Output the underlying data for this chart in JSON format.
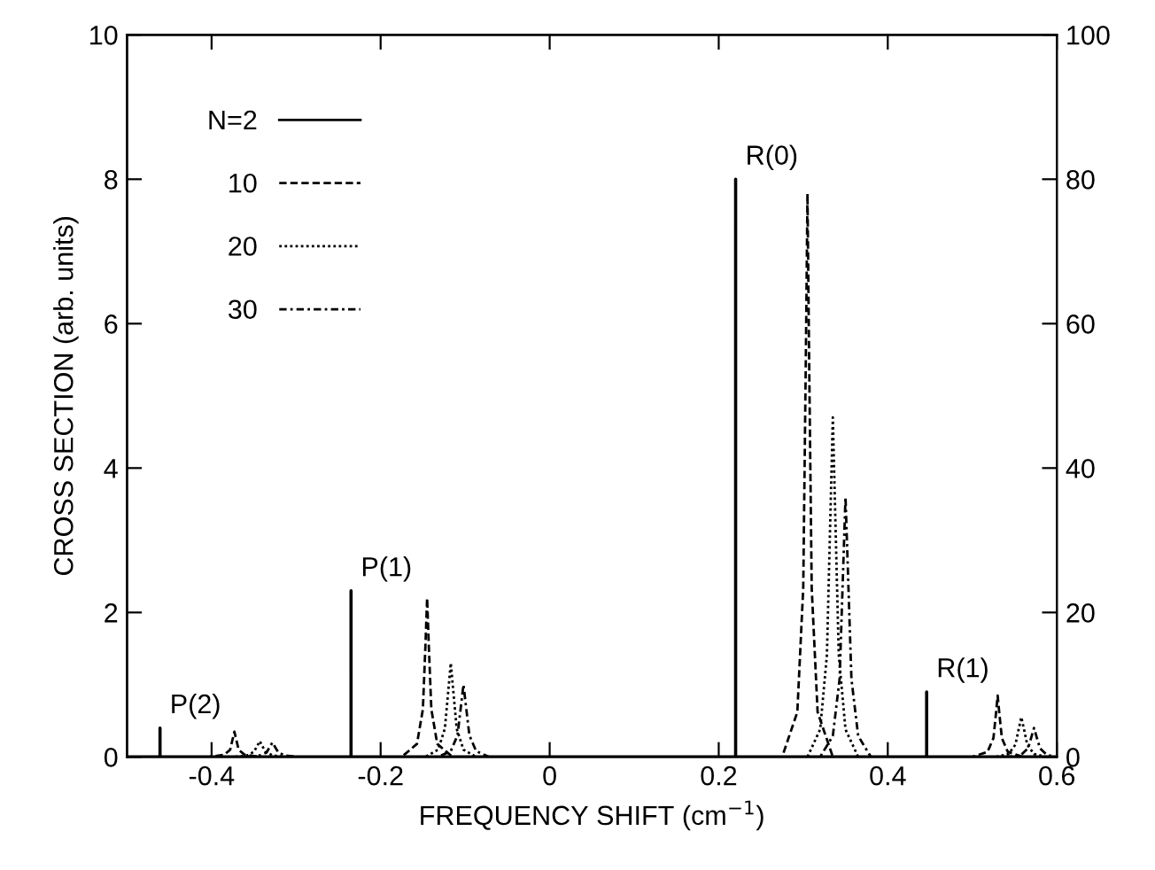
{
  "chart_data": {
    "type": "line",
    "xlabel": "FREQUENCY SHIFT (cm$^{−1}$)",
    "ylabel": "CROSS SECTION (arb. units)",
    "xlim": [
      -0.5,
      0.6
    ],
    "xticks": [
      -0.4,
      -0.2,
      0,
      0.2,
      0.4,
      0.6
    ],
    "ylim": [
      0,
      10
    ],
    "yticks": [
      0,
      2,
      4,
      6,
      8,
      10
    ],
    "y2lim": [
      0,
      100
    ],
    "y2ticks": [
      0,
      20,
      40,
      60,
      80,
      100
    ],
    "legend": "top left",
    "grid": false,
    "series": [
      {
        "name": "N=2",
        "color": "#000000",
        "line_style": "solid",
        "x": [
          -0.5,
          -0.461,
          -0.461,
          -0.461,
          -0.235,
          -0.235,
          -0.235,
          0.22,
          0.22,
          0.22,
          0.446,
          0.446,
          0.446,
          0.6
        ],
        "values": [
          0,
          0,
          0.4,
          0,
          0,
          2.3,
          0,
          0,
          8.0,
          0,
          0,
          0.9,
          0,
          0
        ]
      },
      {
        "name": "10",
        "color": "#000000",
        "line_style": "dashed",
        "x": [
          -0.5,
          -0.403,
          -0.385,
          -0.378,
          -0.375,
          -0.373,
          -0.371,
          -0.368,
          -0.361,
          -0.343,
          -0.175,
          -0.157,
          -0.15,
          -0.147,
          -0.145,
          -0.143,
          -0.14,
          -0.133,
          -0.115,
          0.275,
          0.293,
          0.3,
          0.303,
          0.305,
          0.307,
          0.31,
          0.317,
          0.335,
          0.5,
          0.518,
          0.525,
          0.528,
          0.53,
          0.532,
          0.535,
          0.542,
          0.56,
          0.6
        ],
        "values": [
          0,
          0,
          0.03,
          0.1,
          0.25,
          0.35,
          0.25,
          0.1,
          0.03,
          0,
          0,
          0.18,
          0.66,
          1.54,
          2.2,
          1.54,
          0.66,
          0.18,
          0,
          0,
          0.62,
          2.34,
          5.46,
          7.8,
          5.46,
          2.34,
          0.62,
          0,
          0,
          0.07,
          0.26,
          0.6,
          0.85,
          0.6,
          0.26,
          0.07,
          0,
          0
        ]
      },
      {
        "name": "20",
        "color": "#000000",
        "line_style": "dotted",
        "x": [
          -0.5,
          -0.373,
          -0.358,
          -0.35,
          -0.346,
          -0.343,
          -0.34,
          -0.336,
          -0.328,
          -0.313,
          -0.147,
          -0.132,
          -0.124,
          -0.12,
          -0.117,
          -0.114,
          -0.11,
          -0.102,
          -0.087,
          0.305,
          0.32,
          0.328,
          0.332,
          0.335,
          0.338,
          0.342,
          0.35,
          0.365,
          0.528,
          0.543,
          0.551,
          0.555,
          0.558,
          0.561,
          0.565,
          0.573,
          0.588,
          0.6
        ],
        "values": [
          0,
          0,
          0.02,
          0.07,
          0.15,
          0.22,
          0.15,
          0.07,
          0.02,
          0,
          0,
          0.1,
          0.39,
          0.91,
          1.3,
          0.91,
          0.39,
          0.1,
          0,
          0,
          0.38,
          1.41,
          3.29,
          4.7,
          3.29,
          1.41,
          0.38,
          0,
          0,
          0.04,
          0.17,
          0.39,
          0.55,
          0.39,
          0.17,
          0.04,
          0,
          0
        ]
      },
      {
        "name": "30",
        "color": "#000000",
        "line_style": "dashdot",
        "x": [
          -0.5,
          -0.358,
          -0.343,
          -0.335,
          -0.331,
          -0.328,
          -0.325,
          -0.321,
          -0.313,
          -0.298,
          -0.132,
          -0.117,
          -0.109,
          -0.105,
          -0.102,
          -0.099,
          -0.095,
          -0.087,
          -0.072,
          0.32,
          0.335,
          0.343,
          0.347,
          0.35,
          0.353,
          0.357,
          0.365,
          0.38,
          0.543,
          0.558,
          0.566,
          0.57,
          0.573,
          0.576,
          0.58,
          0.588,
          0.598
        ],
        "values": [
          0,
          0,
          0.02,
          0.06,
          0.14,
          0.2,
          0.14,
          0.06,
          0.02,
          0,
          0,
          0.08,
          0.3,
          0.7,
          1.0,
          0.7,
          0.3,
          0.08,
          0,
          0,
          0.29,
          1.08,
          2.52,
          3.6,
          2.52,
          1.08,
          0.29,
          0,
          0,
          0.03,
          0.12,
          0.28,
          0.4,
          0.28,
          0.12,
          0.03,
          0
        ]
      }
    ],
    "annotations": [
      {
        "text": "P(2)",
        "x": -0.461,
        "y": 0.4
      },
      {
        "text": "P(1)",
        "x": -0.235,
        "y": 2.3
      },
      {
        "text": "R(0)",
        "x": 0.22,
        "y": 8.0
      },
      {
        "text": "R(1)",
        "x": 0.446,
        "y": 0.9
      }
    ]
  }
}
